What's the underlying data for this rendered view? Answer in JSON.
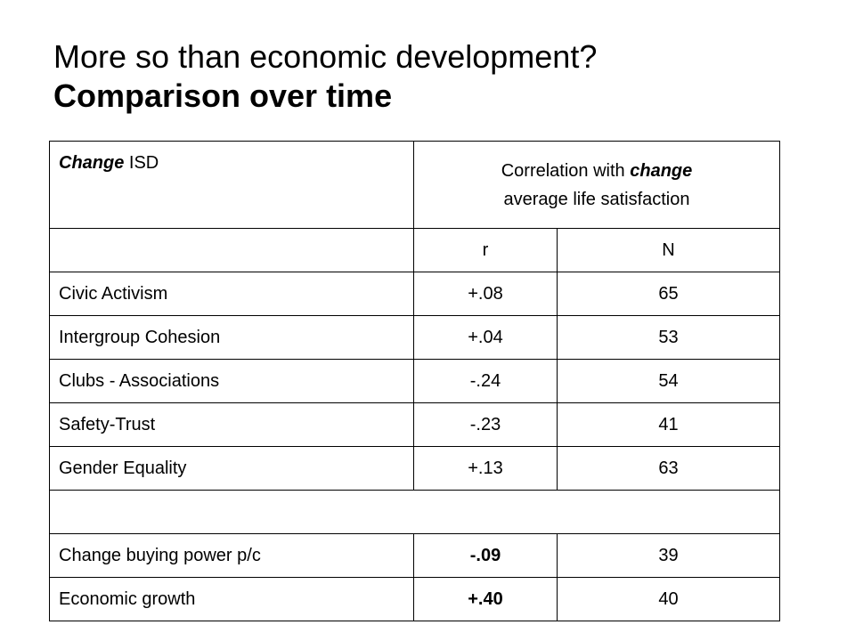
{
  "title": {
    "line1": "More so than economic development?",
    "line2": "Comparison over time"
  },
  "table": {
    "header": {
      "label_emph": "Change",
      "label_rest": " ISD",
      "corr_part1": "Correlation with ",
      "corr_emph": "change",
      "corr_line2": "average life satisfaction"
    },
    "subheader": {
      "label": "",
      "r": "r",
      "n": "N"
    },
    "rows": [
      {
        "label": "Civic Activism",
        "r": "+.08",
        "n": "65"
      },
      {
        "label": "Intergroup Cohesion",
        "r": "+.04",
        "n": "53"
      },
      {
        "label": "Clubs - Associations",
        "r": "-.24",
        "n": "54"
      },
      {
        "label": "Safety-Trust",
        "r": "-.23",
        "n": "41"
      },
      {
        "label": "Gender Equality",
        "r": "+.13",
        "n": "63"
      }
    ],
    "economic_rows": [
      {
        "label": "Change buying power p/c",
        "r": "-.09",
        "n": "39"
      },
      {
        "label": "Economic growth",
        "r": "+.40",
        "n": "40"
      }
    ]
  }
}
